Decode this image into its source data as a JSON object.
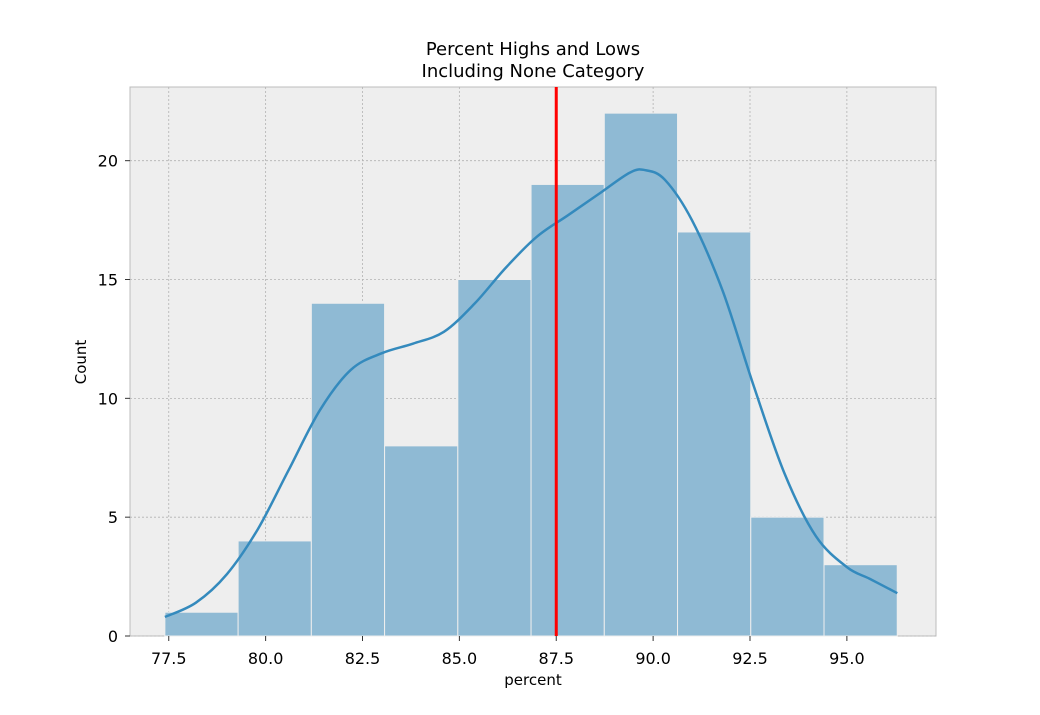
{
  "chart_data": {
    "type": "bar",
    "title": "Percent Highs and Lows",
    "subtitle": "Including None Category",
    "xlabel": "percent",
    "ylabel": "Count",
    "xlim": [
      76.5,
      97.3
    ],
    "ylim": [
      0,
      23.1
    ],
    "xticks": [
      "77.5",
      "80.0",
      "82.5",
      "85.0",
      "87.5",
      "90.0",
      "92.5",
      "95.0"
    ],
    "yticks": [
      "0",
      "5",
      "10",
      "15",
      "20"
    ],
    "bins": [
      {
        "start": 77.4,
        "end": 79.29,
        "count": 1
      },
      {
        "start": 79.29,
        "end": 81.18,
        "count": 4
      },
      {
        "start": 81.18,
        "end": 83.07,
        "count": 14
      },
      {
        "start": 83.07,
        "end": 84.96,
        "count": 8
      },
      {
        "start": 84.96,
        "end": 86.85,
        "count": 15
      },
      {
        "start": 86.85,
        "end": 88.74,
        "count": 19
      },
      {
        "start": 88.74,
        "end": 90.63,
        "count": 22
      },
      {
        "start": 90.63,
        "end": 92.52,
        "count": 17
      },
      {
        "start": 92.52,
        "end": 94.41,
        "count": 5
      },
      {
        "start": 94.41,
        "end": 96.3,
        "count": 3
      }
    ],
    "kde": {
      "x": [
        77.4,
        78.2,
        79.0,
        79.8,
        80.6,
        81.4,
        82.2,
        83.0,
        83.8,
        84.6,
        85.4,
        86.2,
        87.0,
        87.8,
        88.6,
        89.4,
        89.8,
        90.3,
        91.0,
        91.8,
        92.6,
        93.4,
        94.2,
        95.0,
        95.6,
        96.3
      ],
      "y": [
        0.8,
        1.4,
        2.6,
        4.5,
        7.0,
        9.5,
        11.2,
        11.9,
        12.3,
        12.8,
        14.0,
        15.5,
        16.8,
        17.7,
        18.6,
        19.5,
        19.6,
        19.2,
        17.5,
        14.5,
        10.5,
        6.8,
        4.2,
        2.9,
        2.4,
        1.8
      ]
    },
    "vline": {
      "x": 87.5,
      "color": "#ff0000"
    },
    "bar_color": "#8fbad4",
    "kde_color": "#348abd",
    "grid": true,
    "legend": "none"
  }
}
